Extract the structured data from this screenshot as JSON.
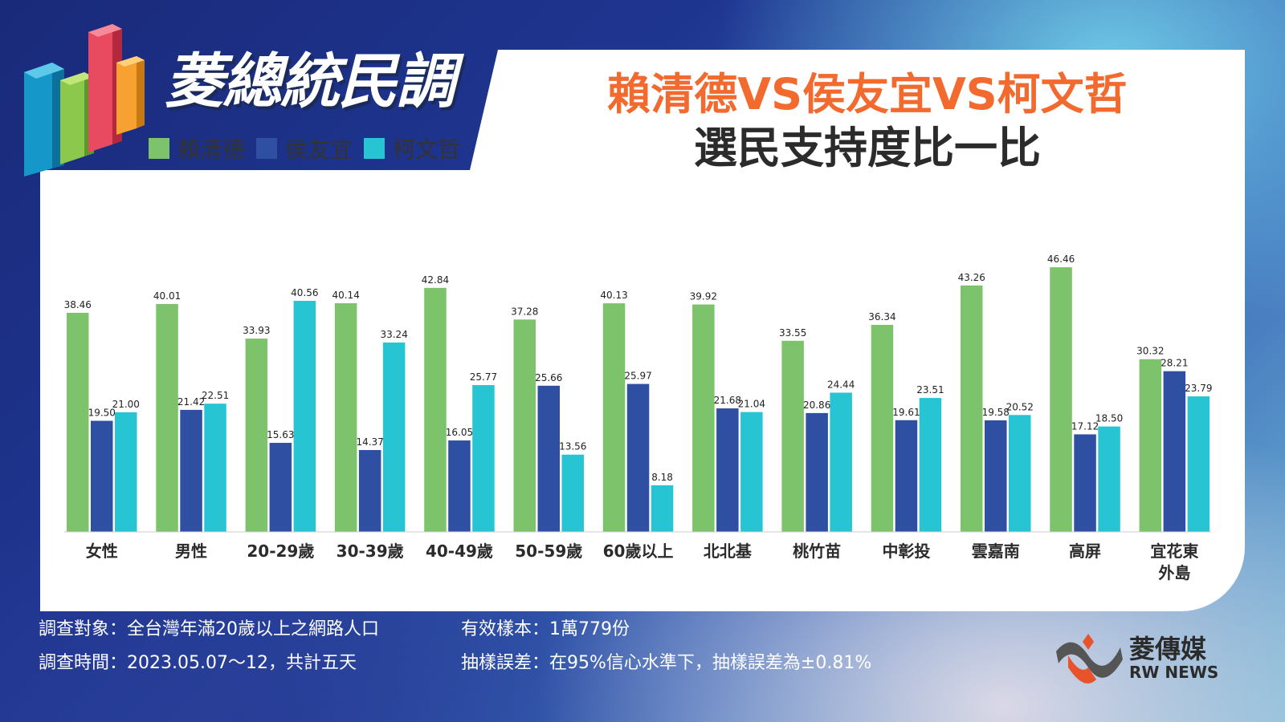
{
  "header": {
    "logo_text": "菱總統民調",
    "title_line1": "賴清德VS侯友宜VS柯文哲",
    "title_line2": "選民支持度比一比"
  },
  "legend": [
    {
      "name": "賴清德",
      "color": "#7dc36b"
    },
    {
      "name": "侯友宜",
      "color": "#2f4fa3"
    },
    {
      "name": "柯文哲",
      "color": "#27c4d3"
    }
  ],
  "chart_data": {
    "type": "bar",
    "categories": [
      "女性",
      "男性",
      "20-29歲",
      "30-39歲",
      "40-49歲",
      "50-59歲",
      "60歲以上",
      "北北基",
      "桃竹苗",
      "中彰投",
      "雲嘉南",
      "高屏",
      "宜花東\n外島"
    ],
    "series": [
      {
        "name": "賴清德",
        "color": "#7dc36b",
        "values": [
          38.46,
          40.01,
          33.93,
          40.14,
          42.84,
          37.28,
          40.13,
          39.92,
          33.55,
          36.34,
          43.26,
          46.46,
          30.32
        ]
      },
      {
        "name": "侯友宜",
        "color": "#2f4fa3",
        "values": [
          19.5,
          21.42,
          15.63,
          14.37,
          16.05,
          25.66,
          25.97,
          21.68,
          20.86,
          19.61,
          19.58,
          17.12,
          28.21
        ]
      },
      {
        "name": "柯文哲",
        "color": "#27c4d3",
        "values": [
          21.0,
          22.51,
          40.56,
          33.24,
          25.77,
          13.56,
          8.18,
          21.04,
          24.44,
          23.51,
          20.52,
          18.5,
          23.79
        ]
      }
    ],
    "value_labels": [
      [
        "38.46",
        "40.01",
        "33.93",
        "40.14",
        "42.84",
        "37.28",
        "40.13",
        "39.92",
        "33.55",
        "36.34",
        "43.26",
        "46.46",
        "30.32"
      ],
      [
        "19.50",
        "21.42",
        "15.63",
        "14.37",
        "16.05",
        "25.66",
        "25.97",
        "21.68",
        "20.86",
        "19.61",
        "19.58",
        "17.12",
        "28.21"
      ],
      [
        "21.00",
        "22.51",
        "40.56",
        "33.24",
        "25.77",
        "13.56",
        "8.18",
        "21.04",
        "24.44",
        "23.51",
        "20.52",
        "18.50",
        "23.79"
      ]
    ],
    "ylim": [
      0,
      50
    ],
    "grid": false,
    "legend_position": "top-left"
  },
  "footer": {
    "subject": "調查對象：全台灣年滿20歲以上之網路人口",
    "period": "調查時間：2023.05.07～12，共計五天",
    "sample": "有效樣本：1萬779份",
    "error": "抽樣誤差：在95%信心水準下，抽樣誤差為±0.81%"
  },
  "brand": {
    "name": "菱傳媒",
    "sub": "RW NEWS"
  }
}
